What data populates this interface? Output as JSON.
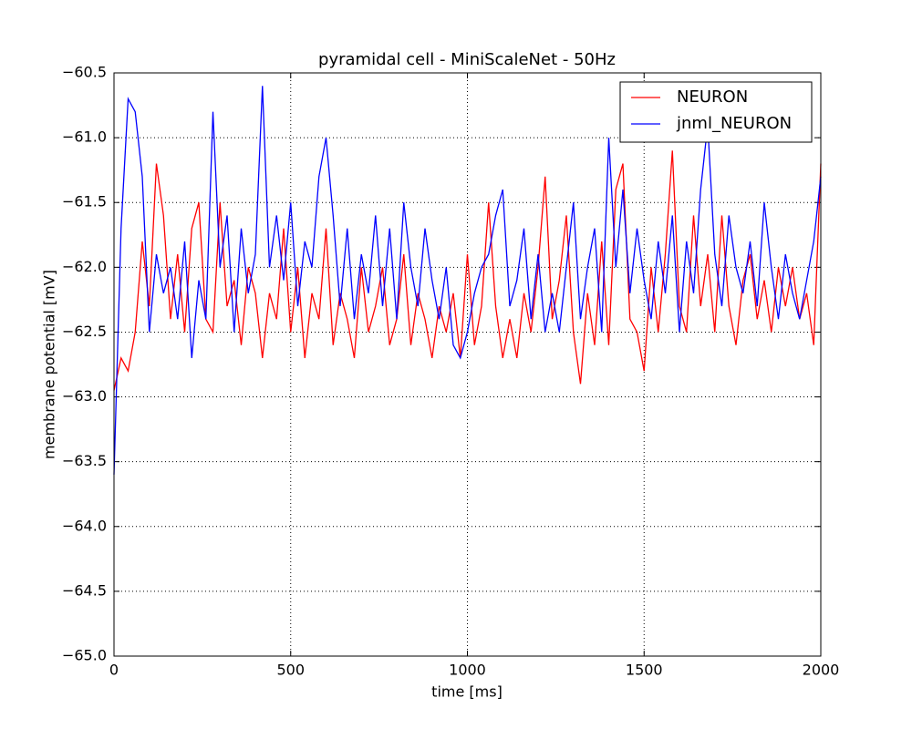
{
  "chart_data": {
    "type": "line",
    "title": "pyramidal cell - MiniScaleNet - 50Hz",
    "x_label": "time [ms]",
    "y_label": "membrane potential [mV]",
    "x": [
      0,
      20,
      40,
      60,
      80,
      100,
      120,
      140,
      160,
      180,
      200,
      220,
      240,
      260,
      280,
      300,
      320,
      340,
      360,
      380,
      400,
      420,
      440,
      460,
      480,
      500,
      520,
      540,
      560,
      580,
      600,
      620,
      640,
      660,
      680,
      700,
      720,
      740,
      760,
      780,
      800,
      820,
      840,
      860,
      880,
      900,
      920,
      940,
      960,
      980,
      1000,
      1020,
      1040,
      1060,
      1080,
      1100,
      1120,
      1140,
      1160,
      1180,
      1200,
      1220,
      1240,
      1260,
      1280,
      1300,
      1320,
      1340,
      1360,
      1380,
      1400,
      1420,
      1440,
      1460,
      1480,
      1500,
      1520,
      1540,
      1560,
      1580,
      1600,
      1620,
      1640,
      1660,
      1680,
      1700,
      1720,
      1740,
      1760,
      1780,
      1800,
      1820,
      1840,
      1860,
      1880,
      1900,
      1920,
      1940,
      1960,
      1980,
      2000
    ],
    "series": [
      {
        "name": "NEURON",
        "color": "#ff0000",
        "values": [
          -62.95,
          -62.7,
          -62.8,
          -62.5,
          -61.8,
          -62.3,
          -61.2,
          -61.6,
          -62.4,
          -61.9,
          -62.5,
          -61.7,
          -61.5,
          -62.4,
          -62.5,
          -61.5,
          -62.3,
          -62.1,
          -62.6,
          -62.0,
          -62.2,
          -62.7,
          -62.2,
          -62.4,
          -61.7,
          -62.5,
          -62.0,
          -62.7,
          -62.2,
          -62.4,
          -61.7,
          -62.6,
          -62.2,
          -62.4,
          -62.7,
          -62.0,
          -62.5,
          -62.3,
          -62.0,
          -62.6,
          -62.4,
          -61.9,
          -62.6,
          -62.2,
          -62.4,
          -62.7,
          -62.3,
          -62.5,
          -62.2,
          -62.7,
          -61.9,
          -62.6,
          -62.3,
          -61.5,
          -62.3,
          -62.7,
          -62.4,
          -62.7,
          -62.2,
          -62.5,
          -62.0,
          -61.3,
          -62.4,
          -62.1,
          -61.6,
          -62.5,
          -62.9,
          -62.2,
          -62.6,
          -61.8,
          -62.6,
          -61.4,
          -61.2,
          -62.4,
          -62.5,
          -62.8,
          -62.0,
          -62.5,
          -61.9,
          -61.1,
          -62.3,
          -62.5,
          -61.6,
          -62.3,
          -61.9,
          -62.5,
          -61.6,
          -62.3,
          -62.6,
          -62.1,
          -61.9,
          -62.4,
          -62.1,
          -62.5,
          -62.0,
          -62.3,
          -62.0,
          -62.4,
          -62.2,
          -62.6,
          -61.2
        ]
      },
      {
        "name": "jnml_NEURON",
        "color": "#0000ff",
        "values": [
          -63.6,
          -61.7,
          -60.7,
          -60.8,
          -61.3,
          -62.5,
          -61.9,
          -62.2,
          -62.0,
          -62.4,
          -61.8,
          -62.7,
          -62.1,
          -62.4,
          -60.8,
          -62.0,
          -61.6,
          -62.5,
          -61.7,
          -62.2,
          -61.9,
          -60.6,
          -62.0,
          -61.6,
          -62.1,
          -61.5,
          -62.3,
          -61.8,
          -62.0,
          -61.3,
          -61.0,
          -61.6,
          -62.3,
          -61.7,
          -62.4,
          -61.9,
          -62.2,
          -61.6,
          -62.3,
          -61.7,
          -62.4,
          -61.5,
          -62.0,
          -62.3,
          -61.7,
          -62.1,
          -62.4,
          -62.0,
          -62.6,
          -62.7,
          -62.5,
          -62.2,
          -62.0,
          -61.9,
          -61.6,
          -61.4,
          -62.3,
          -62.1,
          -61.7,
          -62.4,
          -61.9,
          -62.5,
          -62.2,
          -62.5,
          -62.0,
          -61.5,
          -62.4,
          -62.0,
          -61.7,
          -62.5,
          -61.0,
          -62.0,
          -61.4,
          -62.2,
          -61.7,
          -62.1,
          -62.4,
          -61.8,
          -62.2,
          -61.6,
          -62.5,
          -61.8,
          -62.2,
          -61.4,
          -60.9,
          -61.9,
          -62.3,
          -61.6,
          -62.0,
          -62.2,
          -61.8,
          -62.3,
          -61.5,
          -62.0,
          -62.4,
          -61.9,
          -62.2,
          -62.4,
          -62.1,
          -61.8,
          -61.3
        ]
      }
    ],
    "xlim": [
      0,
      2000
    ],
    "xticks": [
      0,
      500,
      1000,
      1500,
      2000
    ],
    "ylim": [
      -65,
      -60.5
    ],
    "yticks": [
      {
        "value": -65,
        "label": "−65.0"
      },
      {
        "value": -64.5,
        "label": "−64.5"
      },
      {
        "value": -64,
        "label": "−64.0"
      },
      {
        "value": -63.5,
        "label": "−63.5"
      },
      {
        "value": -63,
        "label": "−63.0"
      },
      {
        "value": -62.5,
        "label": "−62.5"
      },
      {
        "value": -62,
        "label": "−62.0"
      },
      {
        "value": -61.5,
        "label": "−61.5"
      },
      {
        "value": -61,
        "label": "−61.0"
      },
      {
        "value": -60.5,
        "label": "−60.5"
      }
    ],
    "grid": true,
    "legend": "upper right"
  }
}
